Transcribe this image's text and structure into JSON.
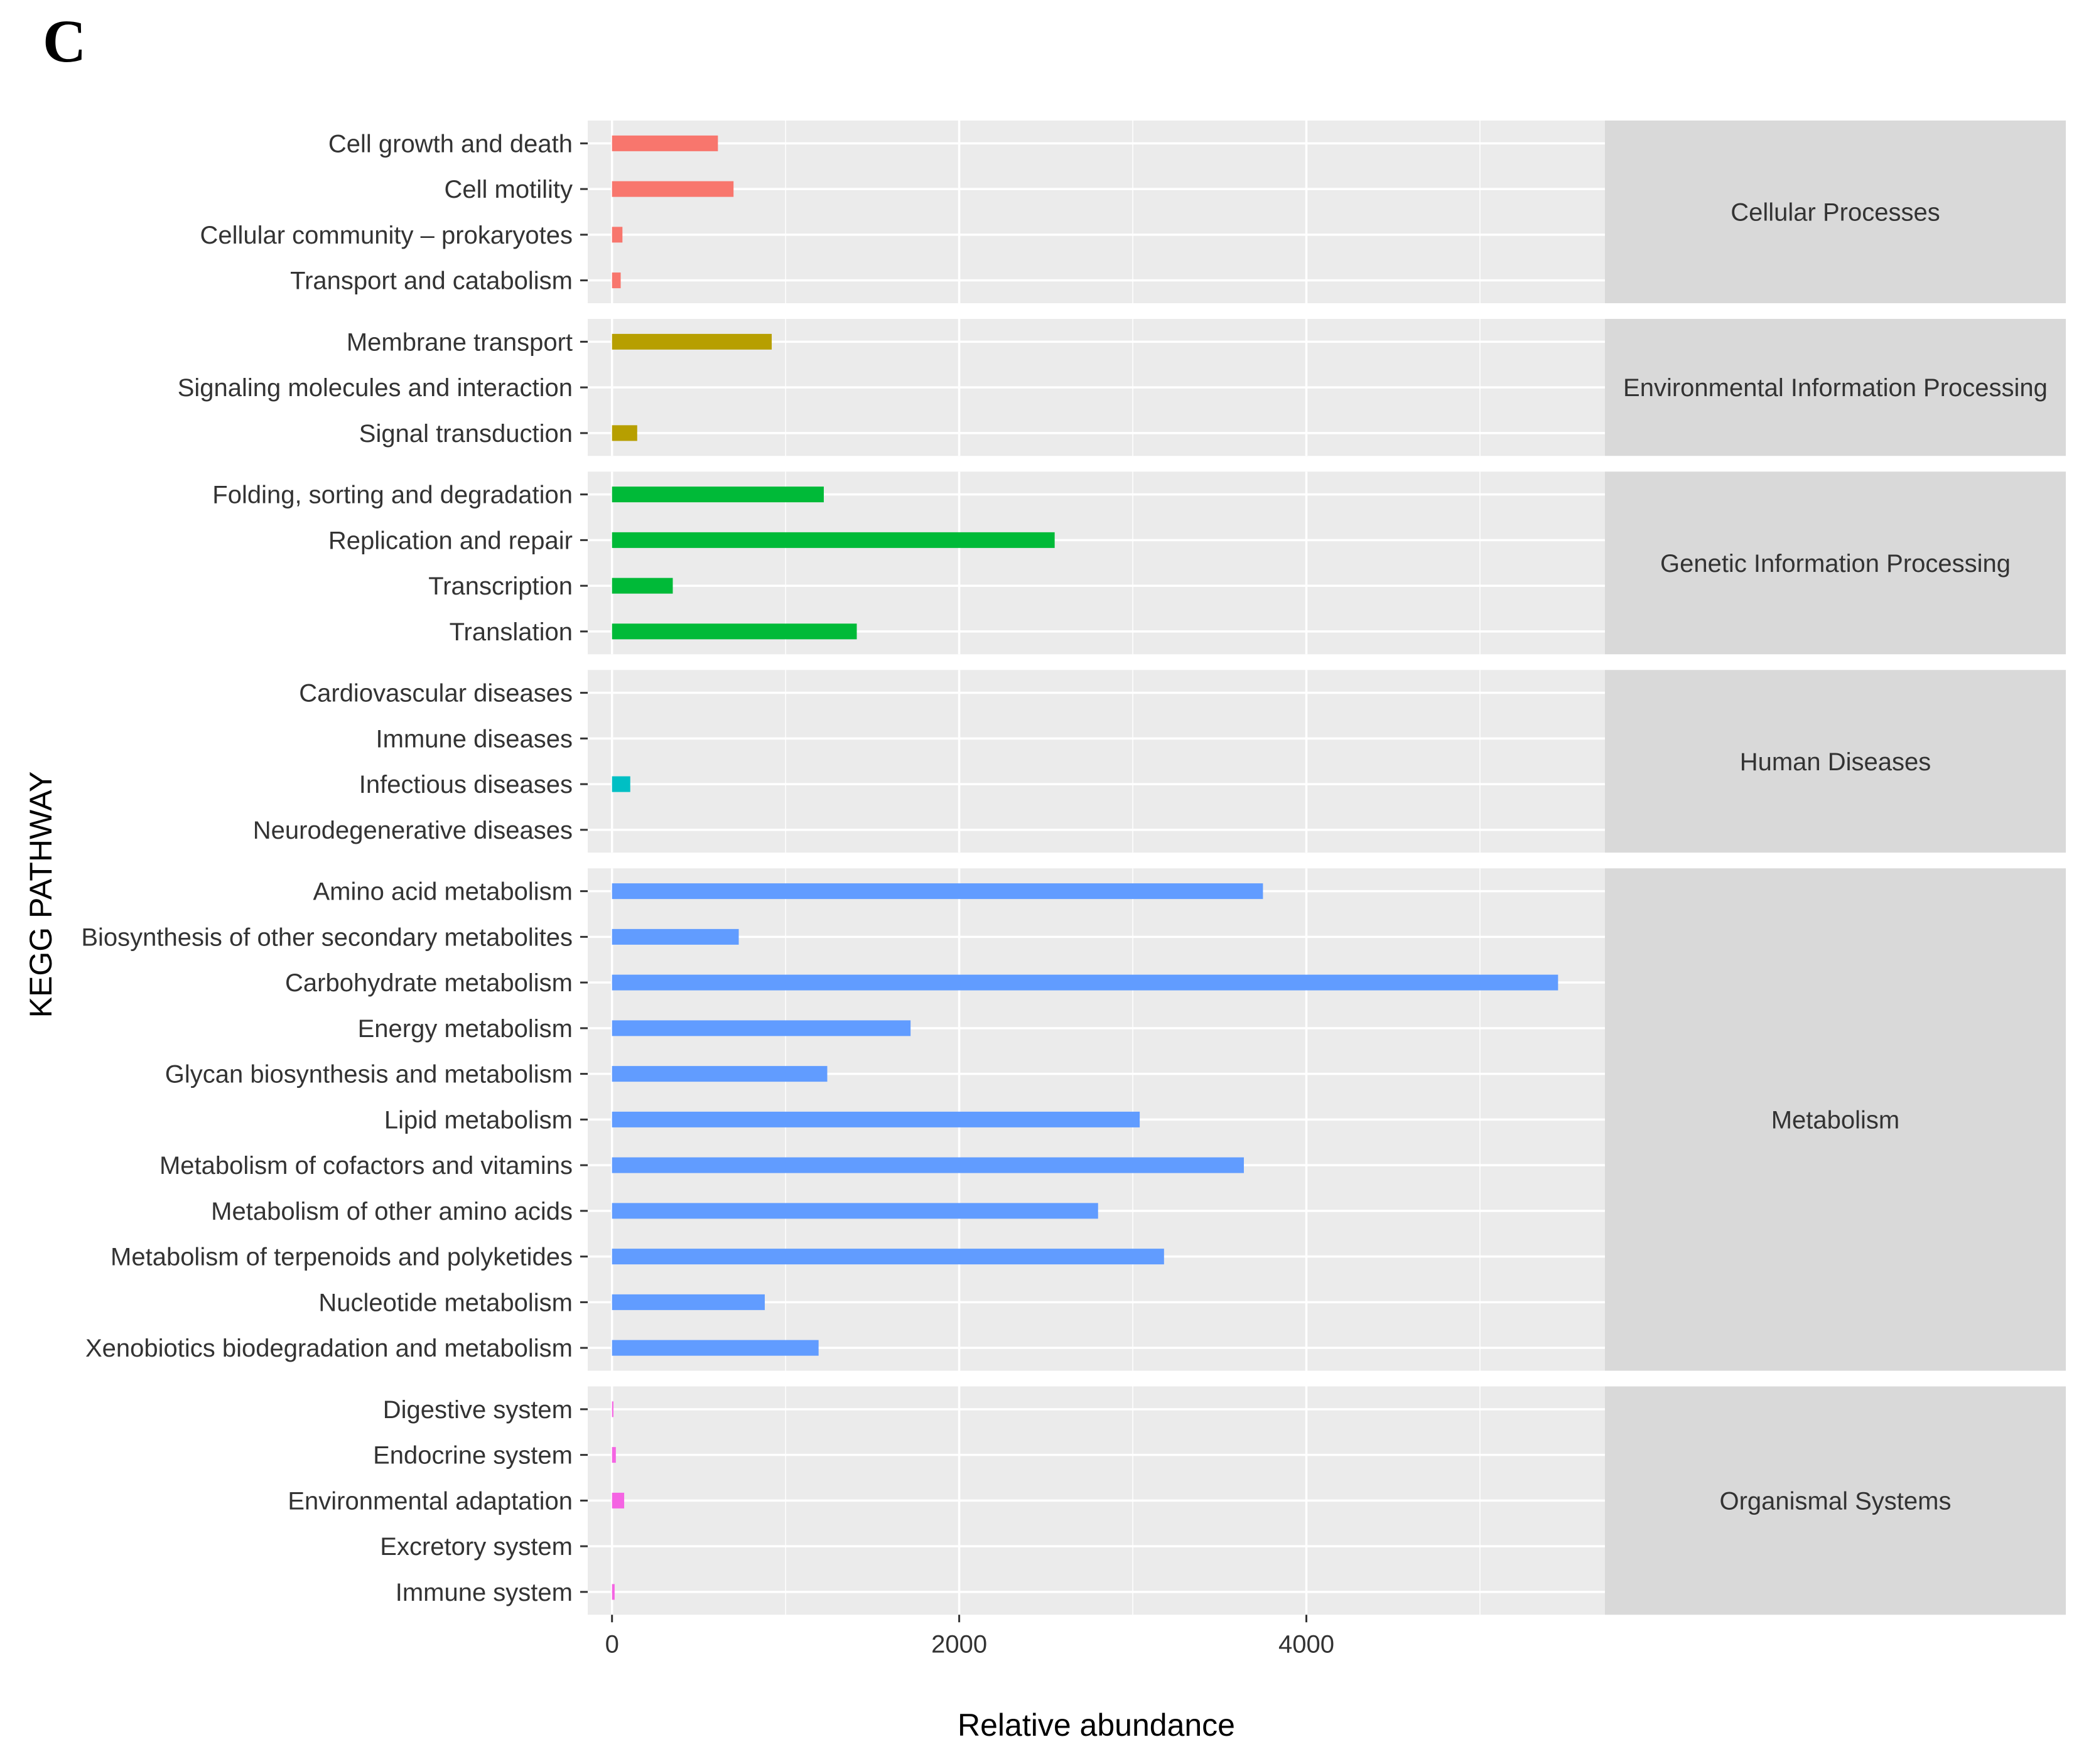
{
  "panel_label": "C",
  "chart_data": {
    "type": "bar",
    "orientation": "horizontal",
    "faceted": true,
    "xlabel": "Relative abundance",
    "ylabel": "KEGG PATHWAY",
    "xlim": [
      -140,
      5720
    ],
    "xticks": [
      0,
      2000,
      4000
    ],
    "x_minor_grid": [
      1000,
      3000,
      5000
    ],
    "grid": true,
    "facets": [
      {
        "name": "Cellular Processes",
        "color": "#F8766D",
        "categories": [
          "Cell growth and death",
          "Cell motility",
          "Cellular community – prokaryotes",
          "Transport and catabolism"
        ],
        "values": [
          610,
          700,
          60,
          50
        ]
      },
      {
        "name": "Environmental Information Processing",
        "color": "#B79F00",
        "categories": [
          "Membrane transport",
          "Signaling molecules and interaction",
          "Signal transduction"
        ],
        "values": [
          920,
          0,
          145
        ]
      },
      {
        "name": "Genetic Information Processing",
        "color": "#00BA38",
        "categories": [
          "Folding, sorting and degradation",
          "Replication and repair",
          "Transcription",
          "Translation"
        ],
        "values": [
          1220,
          2550,
          350,
          1410
        ]
      },
      {
        "name": "Human Diseases",
        "color": "#00BFC4",
        "categories": [
          "Cardiovascular diseases",
          "Immune diseases",
          "Infectious diseases",
          "Neurodegenerative diseases"
        ],
        "values": [
          0,
          0,
          105,
          0
        ]
      },
      {
        "name": "Metabolism",
        "color": "#619CFF",
        "categories": [
          "Amino acid metabolism",
          "Biosynthesis of other secondary metabolites",
          "Carbohydrate metabolism",
          "Energy metabolism",
          "Glycan biosynthesis and metabolism",
          "Lipid metabolism",
          "Metabolism of cofactors and vitamins",
          "Metabolism of other amino acids",
          "Metabolism of terpenoids and polyketides",
          "Nucleotide metabolism",
          "Xenobiotics biodegradation and metabolism"
        ],
        "values": [
          3750,
          730,
          5450,
          1720,
          1240,
          3040,
          3640,
          2800,
          3180,
          880,
          1190
        ]
      },
      {
        "name": "Organismal Systems",
        "color": "#F564E3",
        "categories": [
          "Digestive system",
          "Endocrine system",
          "Environmental adaptation",
          "Excretory system",
          "Immune system"
        ],
        "values": [
          8,
          22,
          70,
          0,
          15
        ]
      }
    ]
  }
}
